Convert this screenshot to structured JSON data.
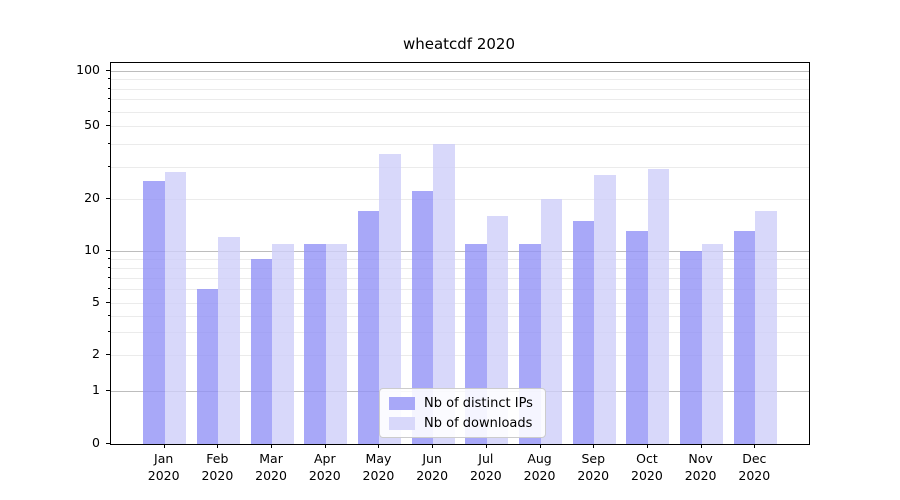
{
  "chart_data": {
    "type": "bar",
    "title": "wheatcdf 2020",
    "categories": [
      "Jan",
      "Feb",
      "Mar",
      "Apr",
      "May",
      "Jun",
      "Jul",
      "Aug",
      "Sep",
      "Oct",
      "Nov",
      "Dec"
    ],
    "category_year": "2020",
    "series": [
      {
        "name": "Nb of distinct IPs",
        "values": [
          25,
          6,
          9,
          11,
          17,
          22,
          11,
          11,
          15,
          13,
          10,
          13
        ],
        "legend_color": "#a8a8f8",
        "bar_color": "rgba(146,146,246,0.8)"
      },
      {
        "name": "Nb of downloads",
        "values": [
          28,
          12,
          11,
          11,
          35,
          40,
          16,
          20,
          27,
          29,
          11,
          17
        ],
        "legend_color": "#d8d8fa",
        "bar_color": "rgba(206,206,249,0.8)"
      }
    ],
    "y_ticks": [
      0,
      1,
      2,
      5,
      10,
      20,
      50,
      100
    ],
    "y_minor_lines": [
      3,
      4,
      6,
      7,
      8,
      9,
      30,
      40,
      60,
      70,
      80,
      90
    ],
    "y_major_lines": [
      1,
      10,
      100
    ],
    "yscale": "symlog",
    "ylim": [
      0,
      110
    ],
    "grid": "both-horizontal",
    "legend_position": "lower center"
  }
}
